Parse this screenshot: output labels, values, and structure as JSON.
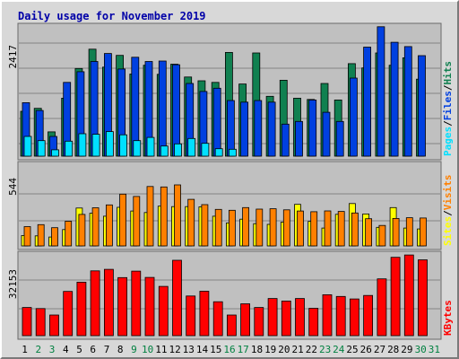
{
  "title": "Daily usage for November 2019",
  "colors": {
    "pages": "#00e0ff",
    "files": "#0040e0",
    "hits": "#108050",
    "sites": "#ffff00",
    "visits": "#ff8000",
    "kbytes": "#ff0000",
    "weekday": "#000000",
    "weekend": "#008040",
    "separator": "#000000",
    "background": "#c0c0c0"
  },
  "chart_data": [
    {
      "type": "bar",
      "categories": [
        "1",
        "2",
        "3",
        "4",
        "5",
        "6",
        "7",
        "8",
        "9",
        "10",
        "11",
        "12",
        "13",
        "14",
        "15",
        "16",
        "17",
        "18",
        "19",
        "20",
        "21",
        "22",
        "23",
        "24",
        "25",
        "26",
        "27",
        "28",
        "29",
        "30",
        "31"
      ],
      "weekend_days": [
        "2",
        "3",
        "9",
        "10",
        "16",
        "17",
        "23",
        "24",
        "30",
        "31"
      ],
      "ymax_label": "2417",
      "ylim": [
        0,
        2417
      ],
      "axis_label_parts": [
        "Pages",
        "Files",
        "Hits"
      ],
      "series": [
        {
          "name": "Hits",
          "values": [
            840,
            895,
            455,
            1085,
            1640,
            2000,
            1665,
            1885,
            1535,
            1700,
            1530,
            1720,
            1480,
            1410,
            1380,
            1940,
            1350,
            1930,
            1120,
            1420,
            1085,
            1060,
            1360,
            1050,
            1730,
            1650,
            1930,
            1700,
            1840,
            1440,
            0
          ]
        },
        {
          "name": "Files",
          "values": [
            1000,
            855,
            370,
            1380,
            1580,
            1770,
            1920,
            1630,
            1850,
            1770,
            1780,
            1710,
            1360,
            1210,
            1270,
            1040,
            1010,
            1040,
            1010,
            600,
            650,
            1050,
            820,
            650,
            1460,
            2040,
            2420,
            2130,
            2050,
            1880,
            0
          ]
        },
        {
          "name": "Pages",
          "values": [
            370,
            290,
            120,
            280,
            420,
            410,
            460,
            400,
            290,
            350,
            190,
            230,
            330,
            240,
            140,
            130,
            0,
            0,
            0,
            0,
            0,
            0,
            0,
            0,
            0,
            0,
            0,
            0,
            0,
            0,
            0
          ]
        }
      ]
    },
    {
      "type": "bar",
      "categories": [
        "1",
        "2",
        "3",
        "4",
        "5",
        "6",
        "7",
        "8",
        "9",
        "10",
        "11",
        "12",
        "13",
        "14",
        "15",
        "16",
        "17",
        "18",
        "19",
        "20",
        "21",
        "22",
        "23",
        "24",
        "25",
        "26",
        "27",
        "28",
        "29",
        "30",
        "31"
      ],
      "weekend_days": [
        "2",
        "3",
        "9",
        "10",
        "16",
        "17",
        "23",
        "24",
        "30",
        "31"
      ],
      "ymax_label": "544",
      "ylim": [
        0,
        544
      ],
      "axis_label_parts": [
        "Sites",
        "Visits"
      ],
      "series": [
        {
          "name": "Visits",
          "values": [
            130,
            143,
            123,
            166,
            212,
            257,
            276,
            349,
            333,
            400,
            397,
            411,
            314,
            278,
            246,
            240,
            258,
            248,
            250,
            243,
            235,
            230,
            236,
            232,
            222,
            183,
            138,
            185,
            190,
            188,
            0
          ]
        },
        {
          "name": "Sites",
          "values": [
            70,
            68,
            60,
            110,
            255,
            220,
            200,
            260,
            235,
            225,
            268,
            265,
            265,
            263,
            200,
            155,
            180,
            150,
            145,
            160,
            280,
            165,
            120,
            213,
            285,
            215,
            125,
            258,
            120,
            114,
            0
          ]
        }
      ]
    },
    {
      "type": "bar",
      "categories": [
        "1",
        "2",
        "3",
        "4",
        "5",
        "6",
        "7",
        "8",
        "9",
        "10",
        "11",
        "12",
        "13",
        "14",
        "15",
        "16",
        "17",
        "18",
        "19",
        "20",
        "21",
        "22",
        "23",
        "24",
        "25",
        "26",
        "27",
        "28",
        "29",
        "30",
        "31"
      ],
      "weekend_days": [
        "2",
        "3",
        "9",
        "10",
        "16",
        "17",
        "23",
        "24",
        "30",
        "31"
      ],
      "ymax_label": "32153",
      "ylim": [
        0,
        32153
      ],
      "axis_label_parts": [
        "KBytes"
      ],
      "series": [
        {
          "name": "KBytes",
          "values": [
            11200,
            10800,
            8200,
            17600,
            21300,
            25800,
            26400,
            23100,
            25700,
            23200,
            19600,
            30000,
            15800,
            17700,
            13500,
            8200,
            12700,
            11200,
            14800,
            13800,
            14800,
            10900,
            16300,
            15600,
            14600,
            16000,
            22600,
            31200,
            32100,
            30200,
            0
          ]
        }
      ]
    }
  ]
}
